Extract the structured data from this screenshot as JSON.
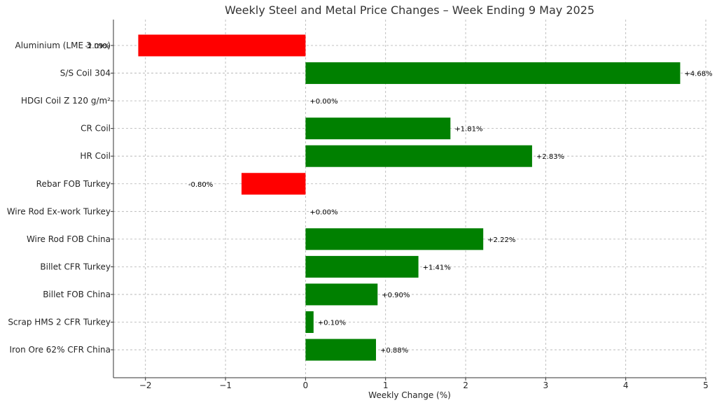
{
  "chart_data": {
    "type": "bar",
    "orientation": "horizontal",
    "title": "Weekly Steel and Metal Price Changes – Week Ending 9 May 2025",
    "xlabel": "Weekly Change (%)",
    "ylabel": "",
    "xlim": [
      -2.4,
      5.0
    ],
    "x_ticks": [
      -2,
      -1,
      0,
      1,
      2,
      3,
      4,
      5
    ],
    "x_tick_labels": [
      "−2",
      "−1",
      "0",
      "1",
      "2",
      "3",
      "4",
      "5"
    ],
    "grid": true,
    "categories": [
      "Aluminium (LME 3 mo)",
      "S/S Coil 304",
      "HDGI Coil Z 120 g/m²",
      "CR Coil",
      "HR Coil",
      "Rebar FOB Turkey",
      "Wire Rod Ex-work Turkey",
      "Wire Rod FOB China",
      "Billet CFR Turkey",
      "Billet FOB China",
      "Scrap HMS 2 CFR Turkey",
      "Iron Ore 62% CFR China"
    ],
    "values": [
      -2.09,
      4.68,
      0.0,
      1.81,
      2.83,
      -0.8,
      0.0,
      2.22,
      1.41,
      0.9,
      0.1,
      0.88
    ],
    "value_labels": [
      "-2.09%",
      "+4.68%",
      "+0.00%",
      "+1.81%",
      "+2.83%",
      "-0.80%",
      "+0.00%",
      "+2.22%",
      "+1.41%",
      "+0.90%",
      "+0.10%",
      "+0.88%"
    ],
    "colors": {
      "positive": "#008000",
      "negative": "#ff0000"
    }
  }
}
